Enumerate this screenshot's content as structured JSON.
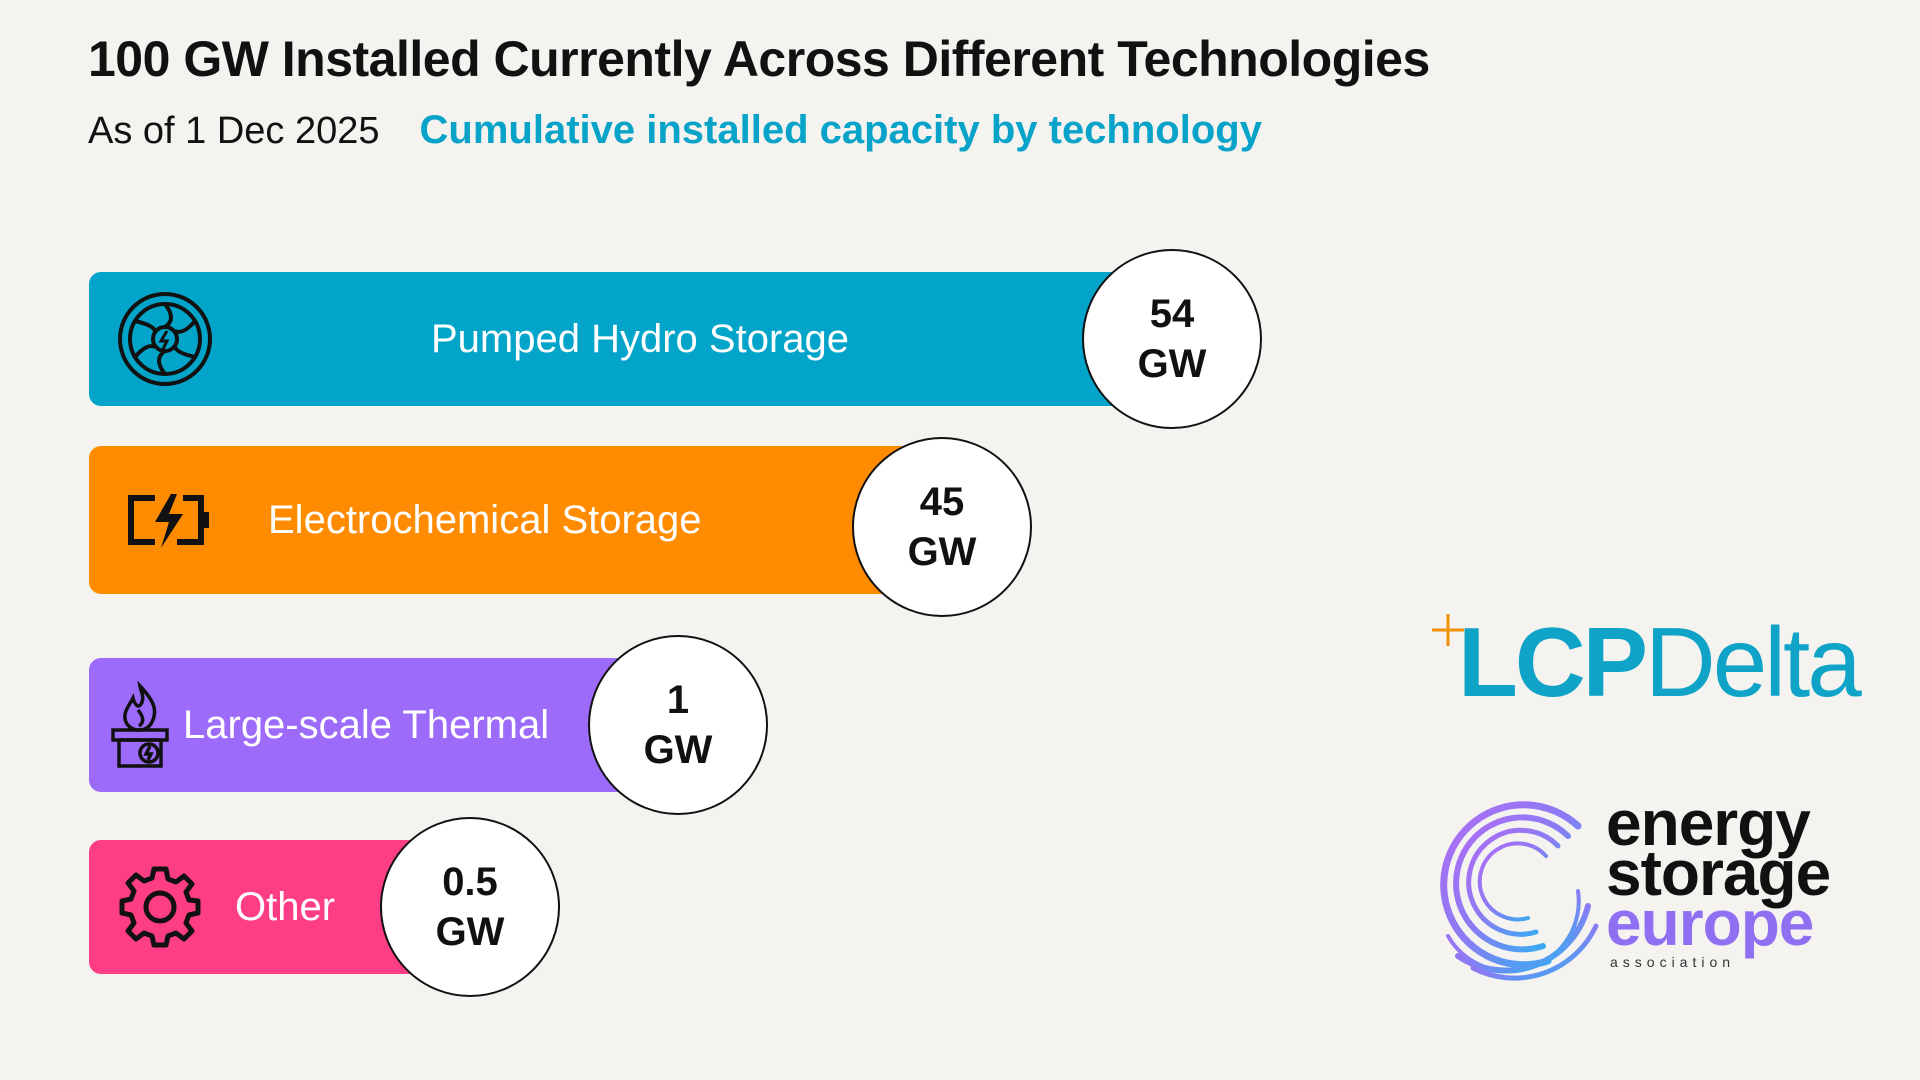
{
  "header": {
    "title": "100 GW Installed Currently Across Different Technologies",
    "date": "As of 1 Dec 2025",
    "subtitle": "Cumulative installed capacity by technology"
  },
  "colors": {
    "subtitle": "#08a3c8",
    "background": "#f5f3f0"
  },
  "chart_data": {
    "type": "bar",
    "orientation": "horizontal",
    "categories": [
      "Pumped Hydro Storage",
      "Electrochemical Storage",
      "Large-scale Thermal",
      "Other"
    ],
    "values": [
      54,
      45,
      1,
      0.5
    ],
    "value_labels": [
      [
        "54",
        "GW"
      ],
      [
        "45",
        "GW"
      ],
      [
        "1",
        "GW"
      ],
      [
        "0.5",
        "GW"
      ]
    ],
    "unit": "GW",
    "colors": [
      "#02a4c9",
      "#ff8c00",
      "#9d6bfa",
      "#fe3e84"
    ],
    "icons": [
      "turbine-icon",
      "battery-icon",
      "thermal-icon",
      "gear-icon"
    ]
  },
  "logos": {
    "lcp": {
      "part1": "LCP",
      "part2": "Delta",
      "color": "#10a3c8",
      "plus_color": "#f0900a"
    },
    "ese": {
      "line1": "energy",
      "line2": "storage",
      "line3": "europe",
      "tagline": "association"
    }
  }
}
